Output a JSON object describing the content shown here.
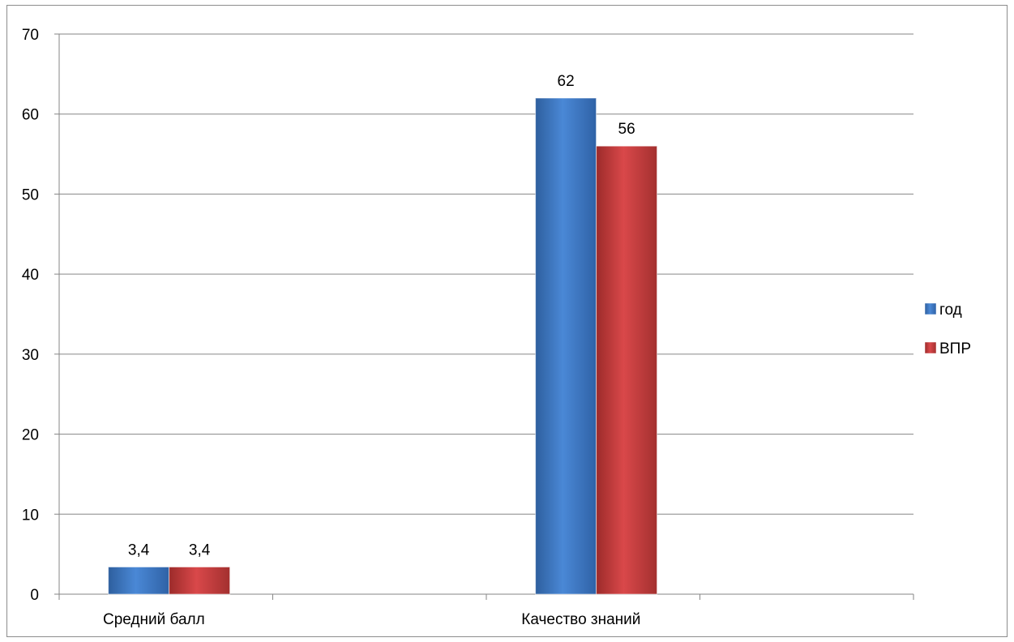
{
  "chart_data": {
    "type": "bar",
    "title": "",
    "xlabel": "",
    "ylabel": "",
    "categories": [
      "Средний балл",
      "Качество знаний"
    ],
    "series": [
      {
        "name": "год",
        "values": [
          3.4,
          62
        ],
        "labels": [
          "3,4",
          "62"
        ],
        "color": "#3f7ac8"
      },
      {
        "name": "ВПР",
        "values": [
          3.4,
          56
        ],
        "labels": [
          "3,4",
          "56"
        ],
        "color": "#c23b3a"
      }
    ],
    "ylim": [
      0,
      70
    ],
    "yticks": [
      0,
      10,
      20,
      30,
      40,
      50,
      60,
      70
    ],
    "grid": true,
    "legend": "right"
  }
}
